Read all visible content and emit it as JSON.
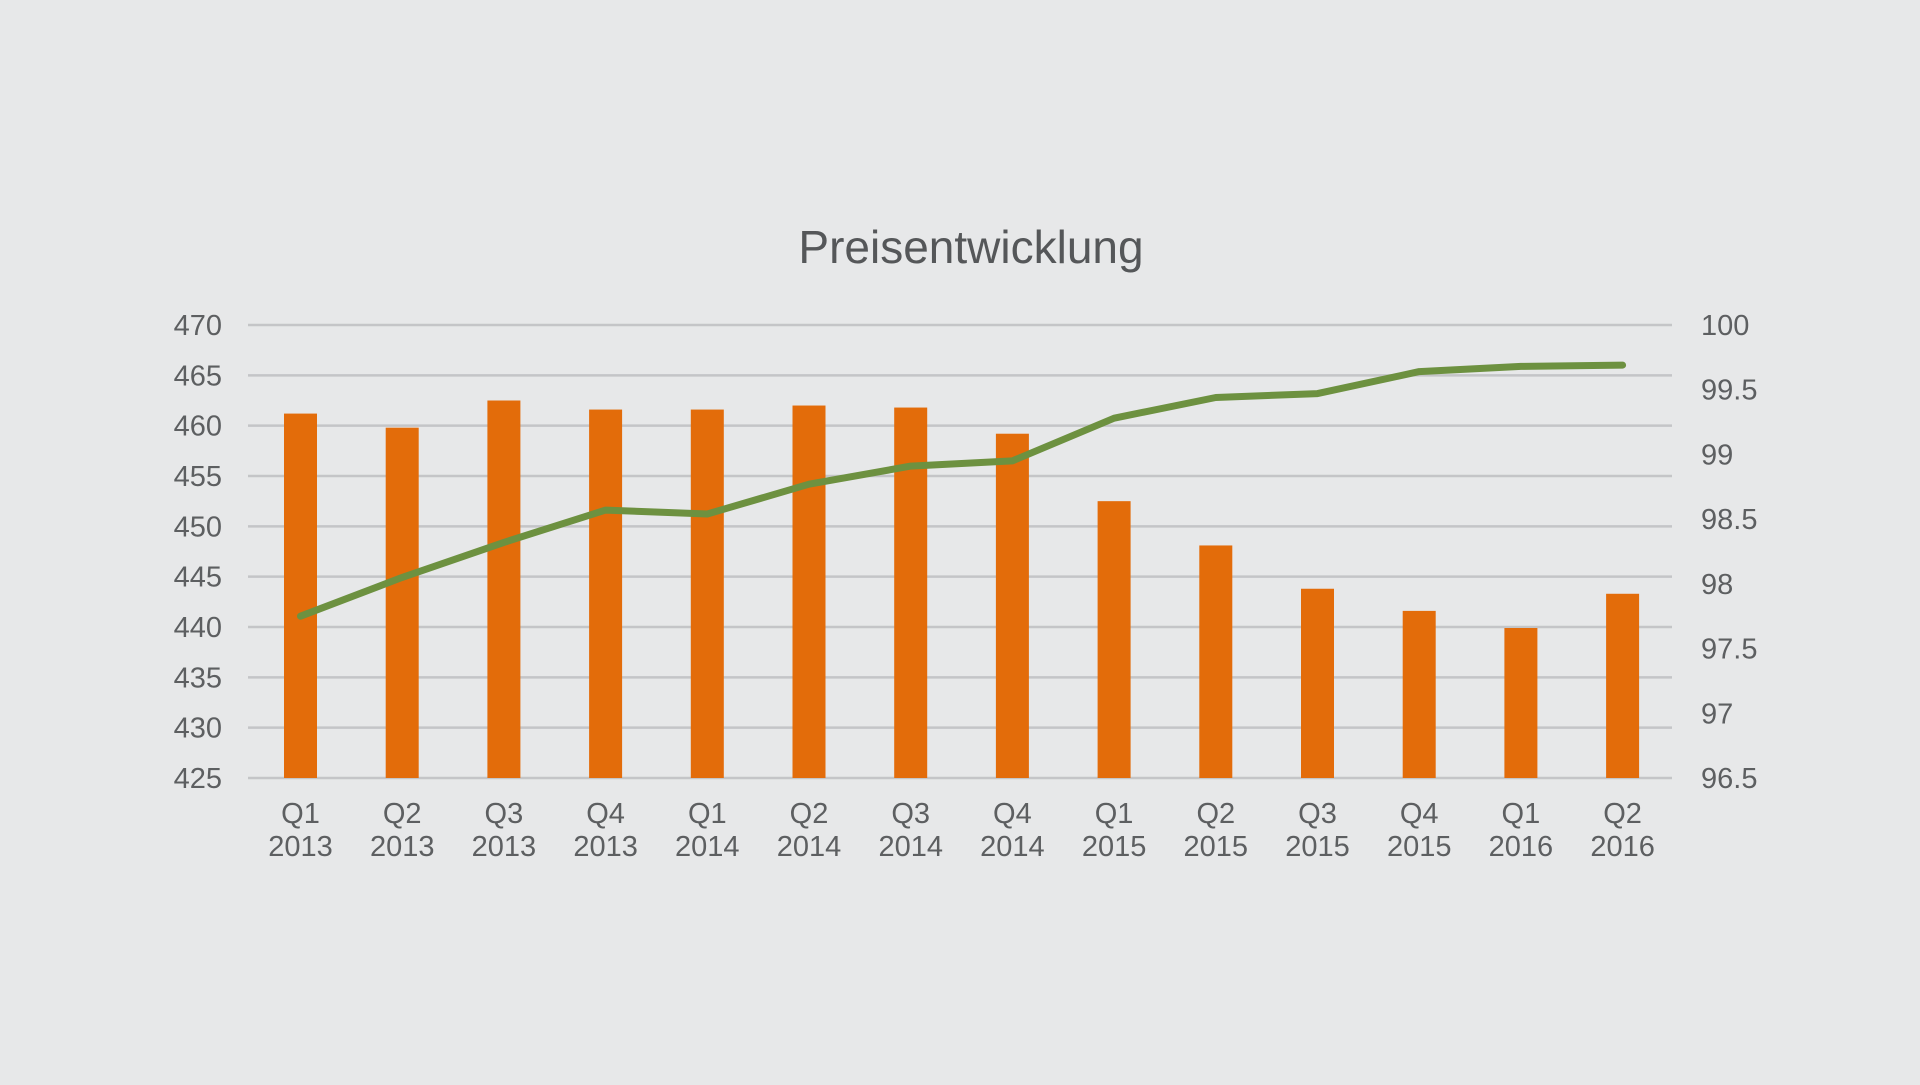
{
  "chart_data": {
    "type": "bar+line",
    "title": "Preisentwicklung",
    "categories": [
      [
        "Q1",
        "2013"
      ],
      [
        "Q2",
        "2013"
      ],
      [
        "Q3",
        "2013"
      ],
      [
        "Q4",
        "2013"
      ],
      [
        "Q1",
        "2014"
      ],
      [
        "Q2",
        "2014"
      ],
      [
        "Q3",
        "2014"
      ],
      [
        "Q4",
        "2014"
      ],
      [
        "Q1",
        "2015"
      ],
      [
        "Q2",
        "2015"
      ],
      [
        "Q3",
        "2015"
      ],
      [
        "Q4",
        "2015"
      ],
      [
        "Q1",
        "2016"
      ],
      [
        "Q2",
        "2016"
      ]
    ],
    "series": [
      {
        "type": "bar",
        "axis": "left",
        "color": "#e36c0a",
        "values": [
          461.2,
          459.8,
          462.5,
          461.6,
          461.6,
          462.0,
          461.8,
          459.2,
          452.5,
          448.1,
          443.8,
          441.6,
          439.9,
          443.3
        ]
      },
      {
        "type": "line",
        "axis": "right",
        "color": "#6d9140",
        "values": [
          97.75,
          98.05,
          98.32,
          98.57,
          98.54,
          98.77,
          98.91,
          98.95,
          99.28,
          99.44,
          99.47,
          99.64,
          99.68,
          99.69
        ]
      }
    ],
    "y_left": {
      "lim": [
        425,
        470
      ],
      "ticks": [
        "425",
        "430",
        "435",
        "440",
        "445",
        "450",
        "455",
        "460",
        "465",
        "470"
      ]
    },
    "y_right": {
      "lim": [
        96.5,
        100
      ],
      "ticks": [
        "96.5",
        "97",
        "97.5",
        "98",
        "98.5",
        "99",
        "99.5",
        "100"
      ]
    },
    "grid": true,
    "legend": "none"
  }
}
